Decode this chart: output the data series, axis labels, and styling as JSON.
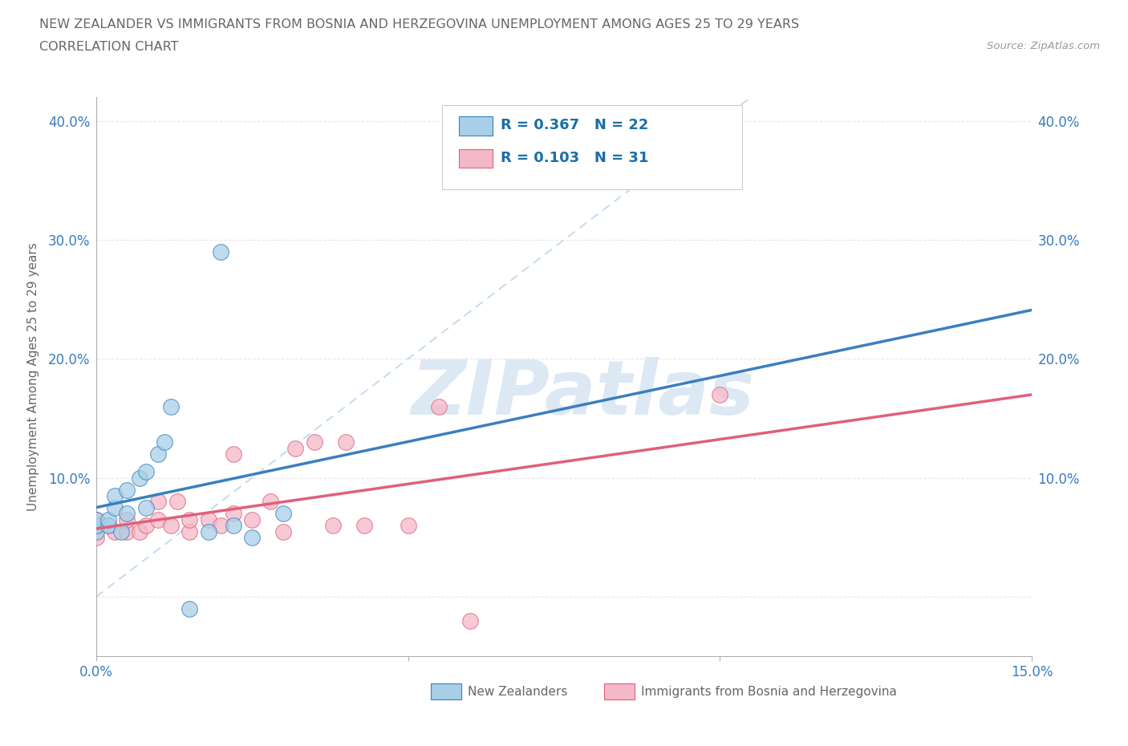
{
  "title_line1": "NEW ZEALANDER VS IMMIGRANTS FROM BOSNIA AND HERZEGOVINA UNEMPLOYMENT AMONG AGES 25 TO 29 YEARS",
  "title_line2": "CORRELATION CHART",
  "source": "Source: ZipAtlas.com",
  "ylabel": "Unemployment Among Ages 25 to 29 years",
  "xlim": [
    0.0,
    0.15
  ],
  "ylim": [
    -0.05,
    0.42
  ],
  "nz_color": "#a8cfe8",
  "imm_color": "#f4b8c8",
  "nz_line_color": "#3a7fbf",
  "imm_line_color": "#e0607a",
  "nz_R": 0.367,
  "nz_N": 22,
  "imm_R": 0.103,
  "imm_N": 31,
  "nz_scatter_x": [
    0.0,
    0.0,
    0.0,
    0.002,
    0.002,
    0.003,
    0.003,
    0.004,
    0.005,
    0.005,
    0.007,
    0.008,
    0.008,
    0.01,
    0.011,
    0.012,
    0.015,
    0.018,
    0.02,
    0.022,
    0.025,
    0.03
  ],
  "nz_scatter_y": [
    0.055,
    0.06,
    0.065,
    0.06,
    0.065,
    0.075,
    0.085,
    0.055,
    0.07,
    0.09,
    0.1,
    0.075,
    0.105,
    0.12,
    0.13,
    0.16,
    -0.01,
    0.055,
    0.29,
    0.06,
    0.05,
    0.07
  ],
  "imm_scatter_x": [
    0.0,
    0.0,
    0.0,
    0.002,
    0.003,
    0.005,
    0.005,
    0.007,
    0.008,
    0.01,
    0.01,
    0.012,
    0.013,
    0.015,
    0.015,
    0.018,
    0.02,
    0.022,
    0.022,
    0.025,
    0.028,
    0.03,
    0.032,
    0.035,
    0.038,
    0.04,
    0.043,
    0.05,
    0.055,
    0.1,
    0.06
  ],
  "imm_scatter_y": [
    0.05,
    0.06,
    0.065,
    0.06,
    0.055,
    0.055,
    0.065,
    0.055,
    0.06,
    0.065,
    0.08,
    0.06,
    0.08,
    0.055,
    0.065,
    0.065,
    0.06,
    0.12,
    0.07,
    0.065,
    0.08,
    0.055,
    0.125,
    0.13,
    0.06,
    0.13,
    0.06,
    0.06,
    0.16,
    0.17,
    -0.02
  ],
  "diagonal_color": "#c0d8f0",
  "watermark_text": "ZIPatlas",
  "watermark_color": "#dde8f5",
  "legend_text_color": "#1a6fa8",
  "background_color": "#ffffff",
  "grid_color": "#e8e8e8",
  "axis_color": "#b0b0b0",
  "tick_label_color": "#3a7abf",
  "text_color": "#666666"
}
